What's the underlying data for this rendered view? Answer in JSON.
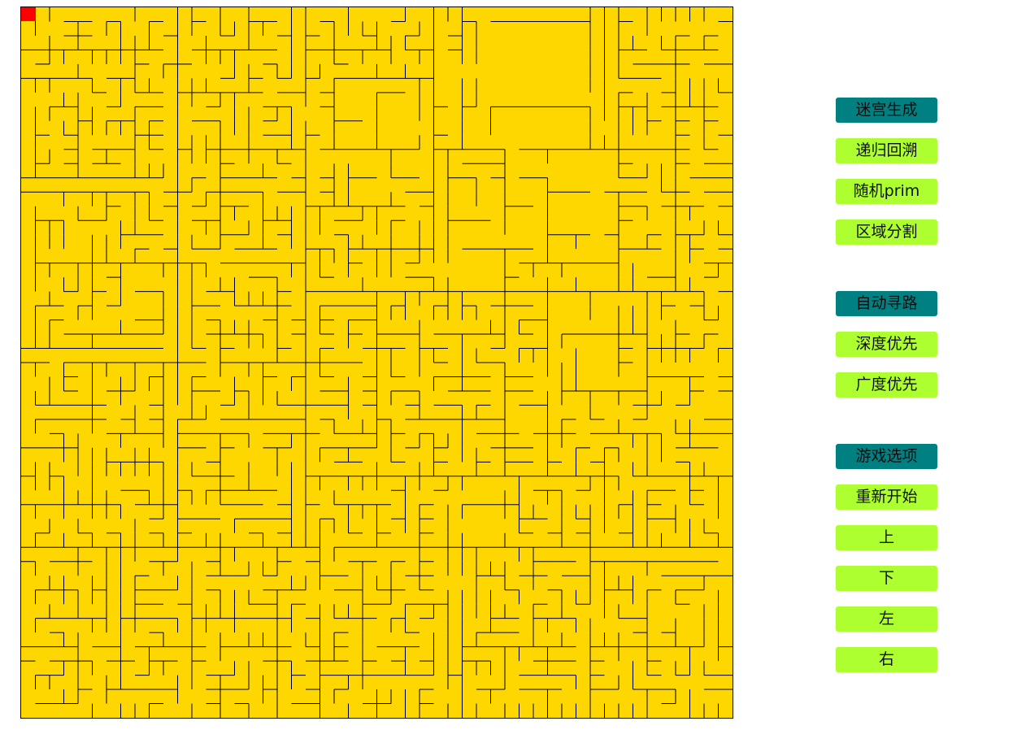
{
  "colors": {
    "maze_fill": "#FFD700",
    "wall": "#000000",
    "player": "#FF0000",
    "header_button": "#008080",
    "option_button": "#ADFF2F"
  },
  "maze": {
    "player_cell": [
      0,
      0
    ]
  },
  "panel": {
    "generate": {
      "header": "迷宫生成",
      "options": [
        "递归回溯",
        "随机prim",
        "区域分割"
      ]
    },
    "pathfinding": {
      "header": "自动寻路",
      "options": [
        "深度优先",
        "广度优先"
      ]
    },
    "game": {
      "header": "游戏选项",
      "options": [
        "重新开始",
        "上",
        "下",
        "左",
        "右"
      ]
    }
  }
}
